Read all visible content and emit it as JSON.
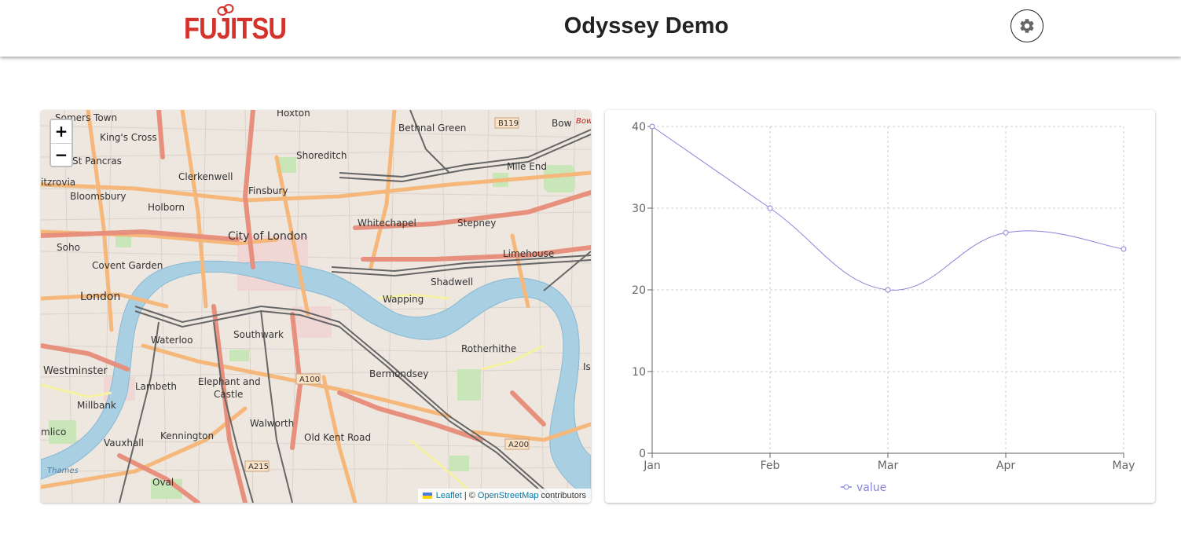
{
  "header": {
    "logo_text": "FUJITSU",
    "title": "Odyssey Demo",
    "settings_icon": "gear-icon"
  },
  "map": {
    "zoom_in_label": "+",
    "zoom_out_label": "−",
    "attribution": {
      "leaflet": "Leaflet",
      "separator": "| ©",
      "osm": "OpenStreetMap",
      "suffix": "contributors"
    },
    "labels": {
      "somers_town": "Somers Town",
      "hoxton": "Hoxton",
      "bethnal_green": "Bethnal Green",
      "b119": "B119",
      "bow": "Bow",
      "kings_cross": "King's Cross",
      "st_pancras": "St Pancras",
      "shoreditch": "Shoreditch",
      "mile_end": "Mile End",
      "fitzrovia": "itzrovia",
      "clerkenwell": "Clerkenwell",
      "bloomsbury": "Bloomsbury",
      "finsbury": "Finsbury",
      "holborn": "Holborn",
      "whitechapel": "Whitechapel",
      "stepney": "Stepney",
      "city_of_london": "City of London",
      "soho": "Soho",
      "covent_garden": "Covent Garden",
      "limehouse": "Limehouse",
      "shadwell": "Shadwell",
      "london": "London",
      "wapping": "Wapping",
      "waterloo": "Waterloo",
      "southwark": "Southwark",
      "rotherhithe": "Rotherhithe",
      "westminster": "Westminster",
      "a100": "A100",
      "bermondsey": "Bermondsey",
      "lambeth": "Lambeth",
      "elephant": "Elephant and",
      "castle": "Castle",
      "millbank": "Millbank",
      "walworth": "Walworth",
      "pimlico": "mlico",
      "kennington": "Kennington",
      "old_kent_road": "Old Kent Road",
      "vauxhall": "Vauxhall",
      "a200": "A200",
      "a215": "A215",
      "oval": "Oval",
      "thames": "Thames",
      "isle": "Is",
      "bow_road": "Bow"
    }
  },
  "chart_data": {
    "type": "line",
    "categories": [
      "Jan",
      "Feb",
      "Mar",
      "Apr",
      "May"
    ],
    "series": [
      {
        "name": "value",
        "values": [
          40,
          30,
          20,
          27,
          25
        ]
      }
    ],
    "ylim": [
      0,
      40
    ],
    "yticks": [
      0,
      10,
      20,
      30,
      40
    ],
    "grid": true,
    "legend": "bottom-center",
    "line_color": "#8884d8"
  }
}
